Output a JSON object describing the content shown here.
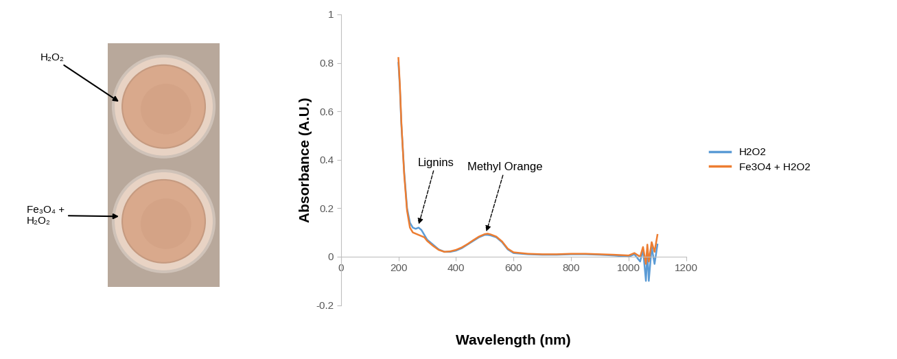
{
  "image": {
    "labels": [
      "H₂O₂",
      "Fe₃O₄ +\nH₂O₂"
    ]
  },
  "chart_data": {
    "type": "line",
    "x_label": "Wavelength (nm)",
    "y_label": "Absorbance (A.U.)",
    "x": [
      200,
      205,
      210,
      220,
      230,
      240,
      250,
      260,
      270,
      280,
      290,
      300,
      320,
      340,
      360,
      380,
      400,
      420,
      440,
      460,
      480,
      500,
      510,
      520,
      540,
      560,
      580,
      600,
      650,
      700,
      750,
      800,
      850,
      900,
      950,
      1000,
      1020,
      1040,
      1050,
      1060,
      1065,
      1070,
      1080,
      1090,
      1100
    ],
    "series": [
      {
        "name": "H2O2",
        "color": "#5b9bd5",
        "values": [
          0.8,
          0.7,
          0.55,
          0.35,
          0.2,
          0.14,
          0.12,
          0.115,
          0.12,
          0.11,
          0.09,
          0.07,
          0.05,
          0.03,
          0.02,
          0.02,
          0.025,
          0.035,
          0.05,
          0.065,
          0.08,
          0.09,
          0.09,
          0.088,
          0.08,
          0.06,
          0.03,
          0.015,
          0.01,
          0.008,
          0.008,
          0.01,
          0.01,
          0.008,
          0.005,
          0.0,
          0.01,
          -0.02,
          0.03,
          -0.1,
          0.02,
          -0.1,
          0.04,
          -0.03,
          0.05
        ]
      },
      {
        "name": "Fe3O4 + H2O2",
        "color": "#ed7d31",
        "values": [
          0.82,
          0.71,
          0.56,
          0.34,
          0.19,
          0.12,
          0.1,
          0.095,
          0.09,
          0.085,
          0.08,
          0.065,
          0.045,
          0.028,
          0.02,
          0.022,
          0.028,
          0.038,
          0.052,
          0.068,
          0.083,
          0.093,
          0.095,
          0.092,
          0.083,
          0.063,
          0.033,
          0.018,
          0.012,
          0.01,
          0.01,
          0.012,
          0.012,
          0.01,
          0.008,
          0.005,
          0.015,
          0.0,
          0.04,
          -0.03,
          0.05,
          -0.02,
          0.06,
          0.02,
          0.09
        ]
      }
    ],
    "annotations": [
      {
        "text": "Lignins",
        "x": 270,
        "y": 0.13
      },
      {
        "text": "Methyl Orange",
        "x": 505,
        "y": 0.1
      }
    ],
    "xlim": [
      0,
      1200
    ],
    "xticks": [
      0,
      200,
      400,
      600,
      800,
      1000,
      1200
    ],
    "ylim": [
      -0.2,
      1
    ],
    "yticks": [
      -0.2,
      0,
      0.2,
      0.4,
      0.6,
      0.8,
      1
    ],
    "grid": false,
    "legend": "right"
  }
}
